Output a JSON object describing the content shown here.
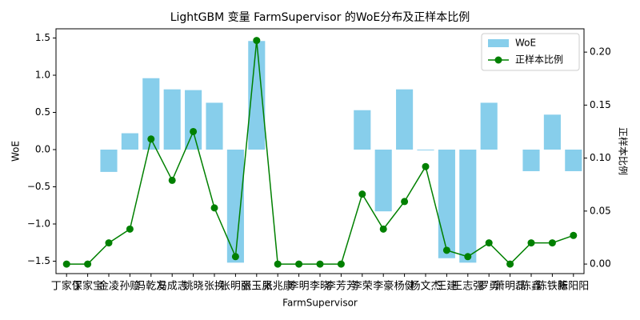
{
  "chart_data": {
    "type": "bar_line",
    "title": "LightGBM 变量 FarmSupervisor 的WoE分布及正样本比例",
    "x_label": "FarmSupervisor",
    "y_label": "WoE",
    "y2_label": "正样本比例",
    "categories": [
      "丁家保",
      "丁家宝",
      "金凌",
      "孙赔",
      "冯乾友",
      "冯成志",
      "姚晓",
      "张换",
      "张明丽",
      "张玉凤",
      "张兆康",
      "李明",
      "李晓",
      "李芳芳",
      "李荣",
      "李豪",
      "杨健",
      "杨文杰",
      "王建",
      "王志强",
      "罗勇",
      "萧明磊",
      "陈鑫",
      "陈铁新",
      "陈阳阳"
    ],
    "series": [
      {
        "name": "WoE",
        "type": "bar",
        "color": "#87ceeb",
        "values": [
          0,
          0,
          -0.3,
          0.22,
          0.96,
          0.81,
          0.8,
          0.63,
          -1.52,
          1.46,
          0,
          0,
          0,
          0,
          0.53,
          -0.83,
          0.81,
          -0.01,
          -1.46,
          -1.52,
          0.63,
          0,
          -0.29,
          0.47,
          -0.29
        ]
      },
      {
        "name": "正样本比例",
        "type": "line",
        "axis": "y2",
        "color": "#008000",
        "values": [
          0,
          0,
          0.02,
          0.033,
          0.118,
          0.079,
          0.125,
          0.053,
          0.007,
          0.211,
          0,
          0,
          0,
          0,
          0.066,
          0.033,
          0.059,
          0.092,
          0.013,
          0.007,
          0.02,
          0,
          0.02,
          0.02,
          0.027
        ]
      }
    ],
    "ylim": [
      -1.667,
      1.624
    ],
    "yticks": [
      {
        "value": -1.5,
        "label": "−1.5"
      },
      {
        "value": -1.0,
        "label": "−1.0"
      },
      {
        "value": -0.5,
        "label": "−0.5"
      },
      {
        "value": 0,
        "label": "0.0"
      },
      0.5,
      {
        "value": 1.0,
        "label": "1.0"
      },
      1.5
    ],
    "y2lim": [
      -0.009,
      0.222
    ],
    "y2ticks": [
      {
        "value": 0,
        "label": "0.00"
      },
      {
        "value": 0.05,
        "label": "0.05"
      },
      {
        "value": 0.1,
        "label": "0.10"
      },
      {
        "value": 0.15,
        "label": "0.15"
      },
      {
        "value": 0.2,
        "label": "0.20"
      }
    ],
    "legend": "upper right"
  }
}
